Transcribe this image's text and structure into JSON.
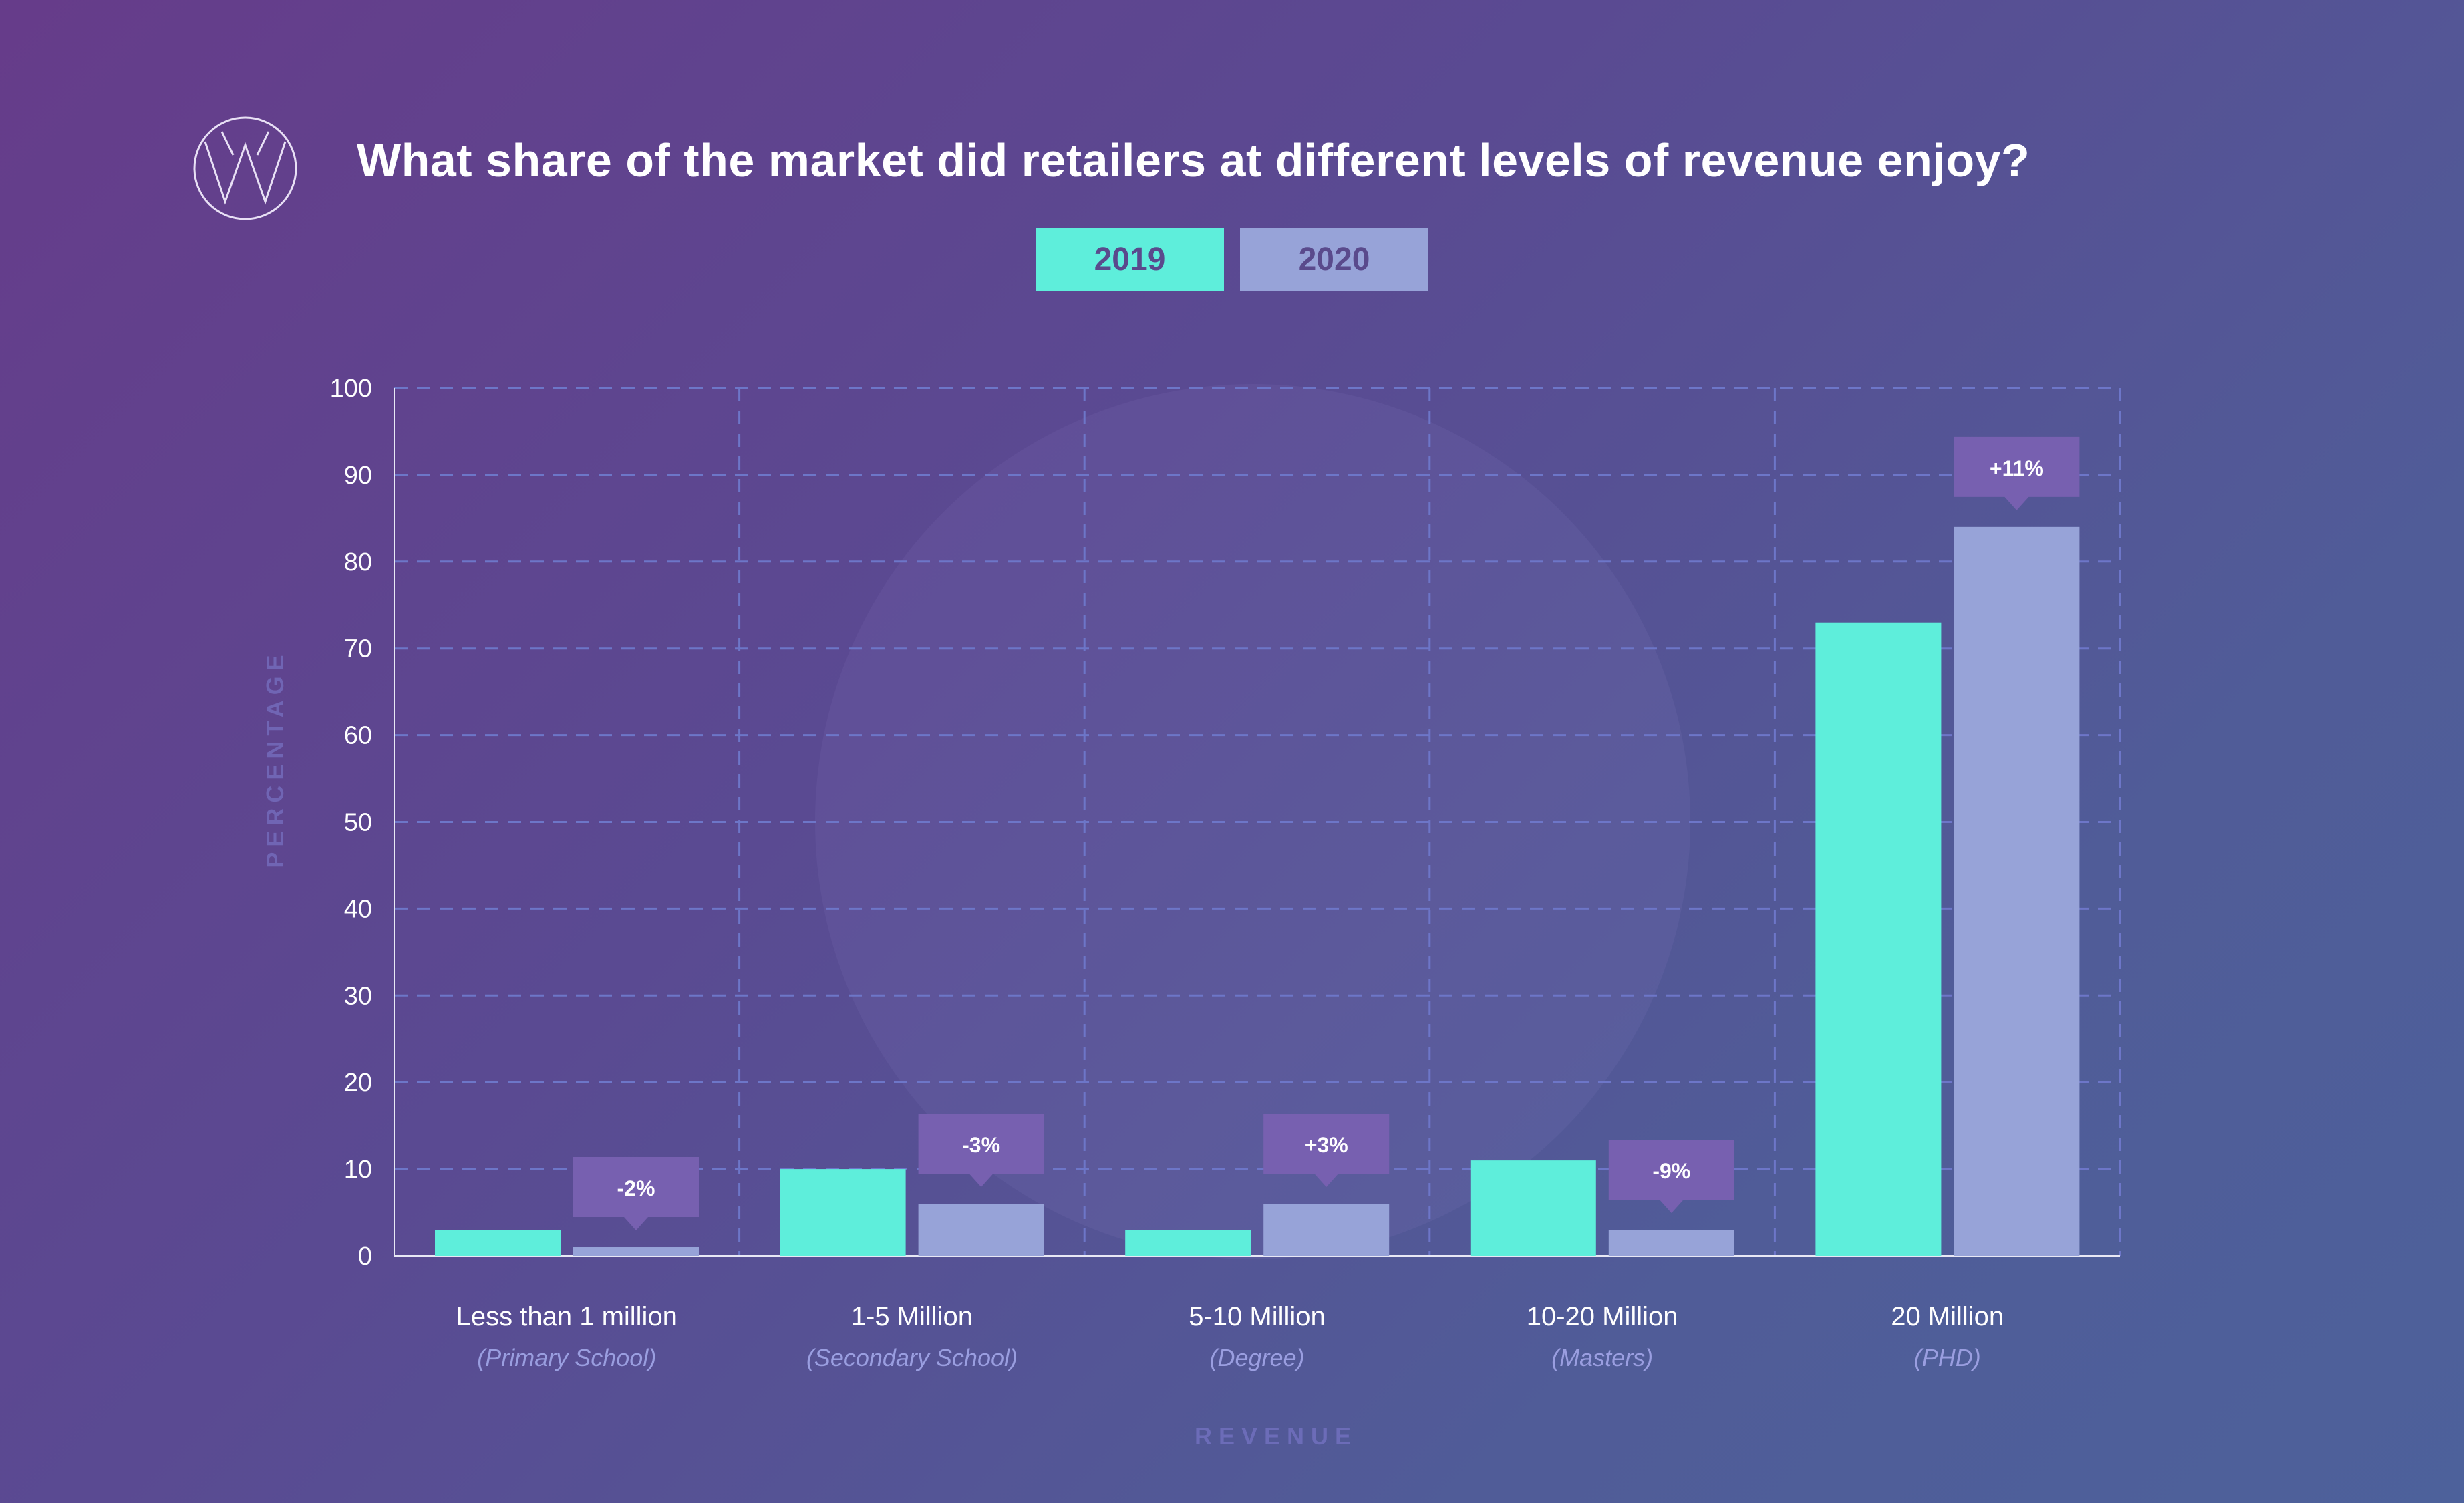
{
  "title": "What share of the market did retailers at different levels of revenue enjoy?",
  "logo_icon": "w-logo-icon",
  "legend": [
    {
      "label": "2019",
      "color": "#5eeedb"
    },
    {
      "label": "2020",
      "color": "#97a3d8"
    }
  ],
  "chart_data": {
    "type": "bar",
    "title": "What share of the market did retailers at different levels of revenue enjoy?",
    "xlabel": "REVENUE",
    "ylabel": "PERCENTAGE",
    "ylim": [
      0,
      100
    ],
    "yticks": [
      0,
      10,
      20,
      30,
      40,
      50,
      60,
      70,
      80,
      90,
      100
    ],
    "grid": true,
    "legend_position": "top-center",
    "categories": [
      "Less than 1 million",
      "1-5 Million",
      "5-10 Million",
      "10-20 Million",
      "20 Million"
    ],
    "sublabels": [
      "(Primary School)",
      "(Secondary School)",
      "(Degree)",
      "(Masters)",
      "(PHD)"
    ],
    "series": [
      {
        "name": "2019",
        "color": "#5eeedb",
        "values": [
          3,
          10,
          3,
          11,
          73
        ]
      },
      {
        "name": "2020",
        "color": "#97a3d8",
        "values": [
          1,
          6,
          6,
          3,
          84
        ]
      }
    ],
    "annotations": [
      "-2%",
      "-3%",
      "+3%",
      "-9%",
      "+11%"
    ],
    "annotation_color": "#7760b0"
  }
}
